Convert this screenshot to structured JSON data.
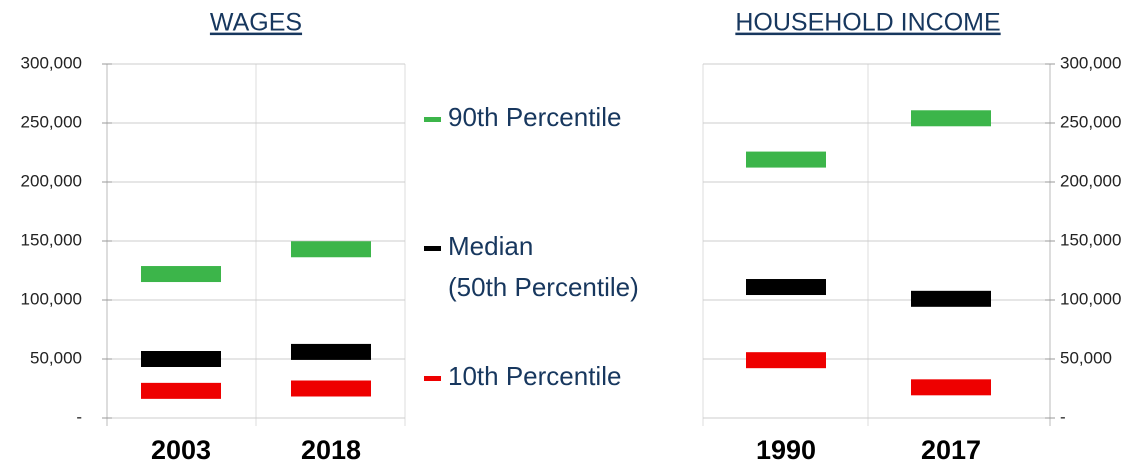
{
  "chart_data": [
    {
      "type": "marker",
      "title": "WAGES",
      "categories": [
        "2003",
        "2018"
      ],
      "series": [
        {
          "name": "90th Percentile",
          "color": "#3cb54a",
          "values": [
            122000,
            143000
          ]
        },
        {
          "name": "Median (50th Percentile)",
          "color": "#000000",
          "values": [
            50000,
            56000
          ]
        },
        {
          "name": "10th Percentile",
          "color": "#ee0000",
          "values": [
            23000,
            25000
          ]
        }
      ],
      "ylim": [
        0,
        300000
      ],
      "yticks": [
        {
          "value": 0,
          "label": "-"
        },
        {
          "value": 50000,
          "label": "50,000"
        },
        {
          "value": 100000,
          "label": "100,000"
        },
        {
          "value": 150000,
          "label": "150,000"
        },
        {
          "value": 200000,
          "label": "200,000"
        },
        {
          "value": 250000,
          "label": "250,000"
        },
        {
          "value": 300000,
          "label": "300,000"
        }
      ],
      "grid": true,
      "axis_side": "left"
    },
    {
      "type": "marker",
      "title": "HOUSEHOLD INCOME",
      "categories": [
        "1990",
        "2017"
      ],
      "series": [
        {
          "name": "90th Percentile",
          "color": "#3cb54a",
          "values": [
            219000,
            254000
          ]
        },
        {
          "name": "Median (50th Percentile)",
          "color": "#000000",
          "values": [
            111000,
            101000
          ]
        },
        {
          "name": "10th Percentile",
          "color": "#ee0000",
          "values": [
            49000,
            26000
          ]
        }
      ],
      "ylim": [
        0,
        300000
      ],
      "yticks": [
        {
          "value": 0,
          "label": "-"
        },
        {
          "value": 50000,
          "label": "50,000"
        },
        {
          "value": 100000,
          "label": "100,000"
        },
        {
          "value": 150000,
          "label": "150,000"
        },
        {
          "value": 200000,
          "label": "200,000"
        },
        {
          "value": 250000,
          "label": "250,000"
        },
        {
          "value": 300000,
          "label": "300,000"
        }
      ],
      "grid": true,
      "axis_side": "right"
    }
  ]
}
